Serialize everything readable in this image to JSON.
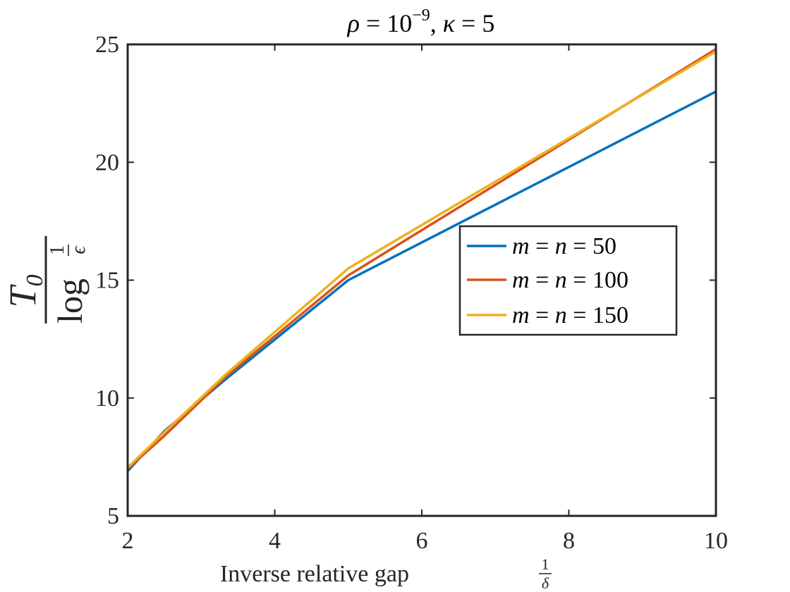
{
  "chart_data": {
    "type": "line",
    "title": "ρ = 10⁻⁹, κ = 5",
    "title_parts": {
      "rho": "ρ",
      "eq1": " = 10",
      "exp": "−9",
      "comma": ", ",
      "kappa": "κ",
      "eq2": " = 5"
    },
    "xlabel": "Inverse relative gap",
    "xlabel_fraction": {
      "num": "1",
      "den": "δ"
    },
    "ylabel": "T0 / log 1/ϵ",
    "ylabel_parts": {
      "T": "T",
      "sub": "0",
      "log": "log",
      "num": "1",
      "den": "ϵ"
    },
    "xlim": [
      2,
      10
    ],
    "ylim": [
      5,
      25
    ],
    "xticks": [
      2,
      4,
      6,
      8,
      10
    ],
    "yticks": [
      5,
      10,
      15,
      20,
      25
    ],
    "grid": false,
    "legend_position": "center-right",
    "series": [
      {
        "name": "m = n = 50",
        "label_parts": {
          "m": "m",
          "n": "n",
          "value": "50"
        },
        "color": "#0072BD",
        "x": [
          2,
          2.5,
          3.333,
          5,
          10
        ],
        "y": [
          6.9,
          8.6,
          10.8,
          15.0,
          23.0
        ]
      },
      {
        "name": "m = n = 100",
        "label_parts": {
          "m": "m",
          "n": "n",
          "value": "100"
        },
        "color": "#D95319",
        "x": [
          2,
          2.5,
          3.333,
          5,
          10
        ],
        "y": [
          7.0,
          8.4,
          10.9,
          15.2,
          24.8
        ]
      },
      {
        "name": "m = n = 150",
        "label_parts": {
          "m": "m",
          "n": "n",
          "value": "150"
        },
        "color": "#EDB120",
        "x": [
          2,
          2.5,
          3.333,
          5,
          10
        ],
        "y": [
          7.05,
          8.55,
          11.0,
          15.5,
          24.7
        ]
      }
    ]
  }
}
